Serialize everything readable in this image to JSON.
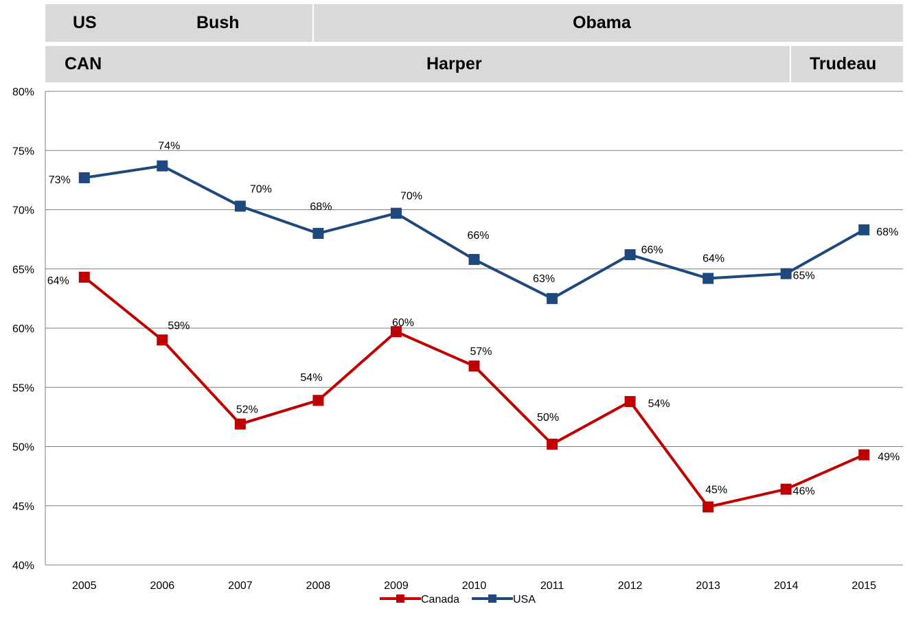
{
  "header": {
    "us_row": {
      "country": "US",
      "terms": [
        "Bush",
        "Obama"
      ]
    },
    "can_row": {
      "country": "CAN",
      "terms": [
        "Harper",
        "Trudeau"
      ]
    }
  },
  "colors": {
    "canada": "#c00000",
    "usa": "#1f497d",
    "band": "#d9d9d9",
    "grid": "#7f7f7f"
  },
  "chart_data": {
    "type": "line",
    "categories": [
      "2005",
      "2006",
      "2007",
      "2008",
      "2009",
      "2010",
      "2011",
      "2012",
      "2013",
      "2014",
      "2015"
    ],
    "ylim": [
      40,
      80
    ],
    "yticks": [
      40,
      45,
      50,
      55,
      60,
      65,
      70,
      75,
      80
    ],
    "ytick_labels": [
      "40%",
      "45%",
      "50%",
      "55%",
      "60%",
      "65%",
      "70%",
      "75%",
      "80%"
    ],
    "grid": true,
    "legend": "bottom-center",
    "series": [
      {
        "name": "Canada",
        "color": "#c00000",
        "values": [
          64.3,
          59.0,
          51.9,
          53.9,
          59.7,
          56.8,
          50.2,
          53.8,
          44.9,
          46.4,
          49.3
        ],
        "labels": [
          "64%",
          "59%",
          "52%",
          "54%",
          "60%",
          "57%",
          "50%",
          "54%",
          "45%",
          "46%",
          "49%"
        ]
      },
      {
        "name": "USA",
        "color": "#1f497d",
        "values": [
          72.7,
          73.7,
          70.3,
          68.0,
          69.7,
          65.8,
          62.5,
          66.2,
          64.2,
          64.6,
          68.3
        ],
        "labels": [
          "73%",
          "74%",
          "70%",
          "68%",
          "70%",
          "66%",
          "63%",
          "66%",
          "64%",
          "65%",
          "68%"
        ]
      }
    ]
  }
}
